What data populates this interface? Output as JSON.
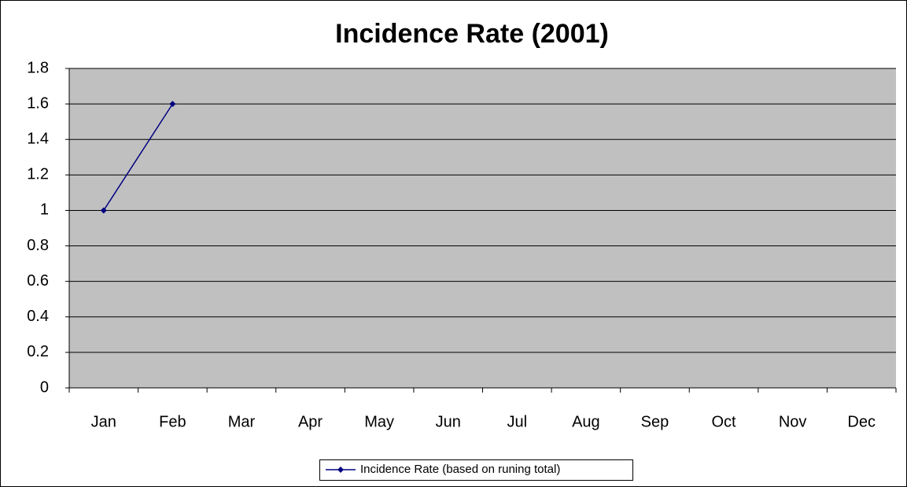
{
  "chart_data": {
    "type": "line",
    "title": "Incidence Rate (2001)",
    "categories": [
      "Jan",
      "Feb",
      "Mar",
      "Apr",
      "May",
      "Jun",
      "Jul",
      "Aug",
      "Sep",
      "Oct",
      "Nov",
      "Dec"
    ],
    "series": [
      {
        "name": "Incidence Rate (based on runing total)",
        "color": "#000080",
        "values": [
          1,
          1.6,
          null,
          null,
          null,
          null,
          null,
          null,
          null,
          null,
          null,
          null
        ]
      }
    ],
    "ylim": [
      0,
      1.8
    ],
    "yticks": [
      0,
      0.2,
      0.4,
      0.6,
      0.8,
      1,
      1.2,
      1.4,
      1.6,
      1.8
    ],
    "grid": true,
    "legend": "bottom"
  }
}
